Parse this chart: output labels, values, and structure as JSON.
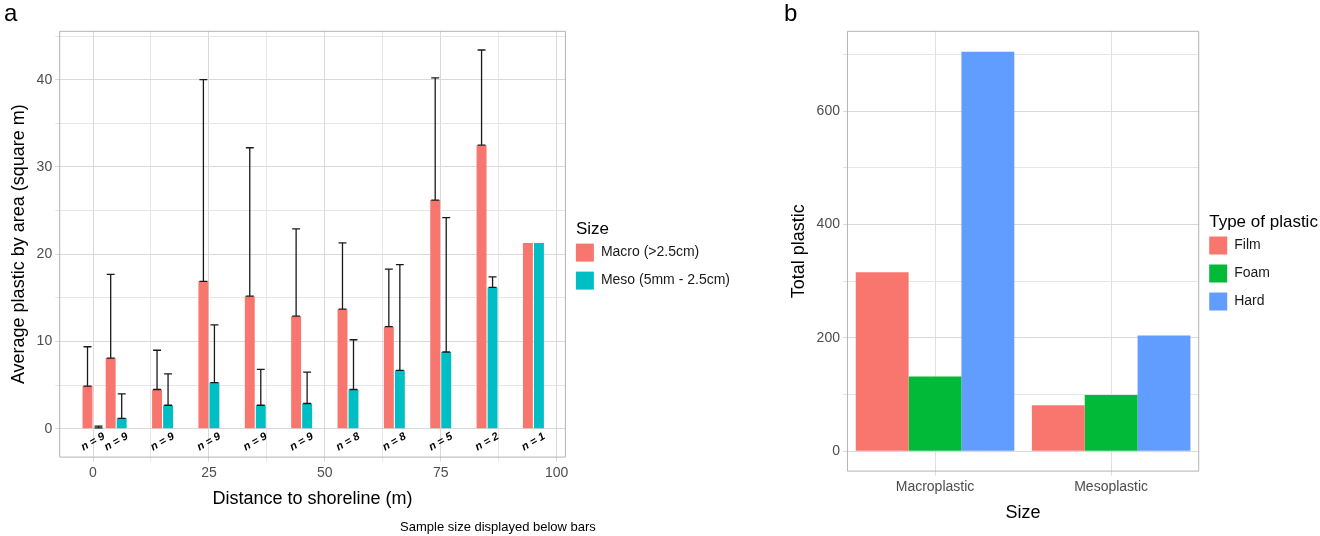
{
  "chart_data": [
    {
      "type": "bar",
      "title": "a",
      "xlabel": "Distance to shoreline (m)",
      "ylabel": "Average plastic by area (square m)",
      "legend_title": "Size",
      "legend": "right",
      "grid": true,
      "x": [
        0,
        5,
        15,
        25,
        35,
        45,
        55,
        65,
        75,
        85,
        95
      ],
      "xlim": [
        -7.3,
        102
      ],
      "xticks": [
        0,
        {
          "value": 12.5,
          "label": null
        },
        25,
        {
          "value": 37.5,
          "label": null
        },
        50,
        {
          "value": 62.5,
          "label": null
        },
        75,
        {
          "value": 87.5,
          "label": null
        },
        100
      ],
      "ylim": [
        -3.3,
        45.6
      ],
      "yticks": [
        0,
        {
          "value": 5,
          "label": null
        },
        10,
        {
          "value": 15,
          "label": null
        },
        20,
        {
          "value": 25,
          "label": null
        },
        30,
        {
          "value": 35,
          "label": null
        },
        40,
        {
          "value": 45,
          "label": null
        }
      ],
      "series": [
        {
          "name": "Macro (>2.5cm)",
          "color": "#f8766d",
          "values": [
            4.9,
            8.1,
            4.5,
            16.9,
            15.2,
            12.9,
            13.7,
            11.7,
            26.2,
            32.5,
            21.3
          ],
          "errors": [
            [
              4.9,
              9.4
            ],
            [
              8.1,
              17.7
            ],
            [
              4.5,
              9.0
            ],
            [
              16.9,
              40.0
            ],
            [
              15.2,
              32.2
            ],
            [
              12.9,
              22.9
            ],
            [
              13.7,
              21.3
            ],
            [
              11.7,
              18.3
            ],
            [
              26.2,
              40.2
            ],
            [
              32.5,
              43.4
            ],
            null
          ]
        },
        {
          "name": "Meso (5mm - 2.5cm)",
          "color": "#00bfc4",
          "values": [
            0.1,
            1.2,
            2.7,
            5.3,
            2.7,
            2.9,
            4.5,
            6.7,
            8.8,
            16.2,
            21.3
          ],
          "errors": [
            [
              0.1,
              0.3
            ],
            [
              1.2,
              4.0
            ],
            [
              2.7,
              6.3
            ],
            [
              5.3,
              11.9
            ],
            [
              2.7,
              6.8
            ],
            [
              2.9,
              6.5
            ],
            [
              4.5,
              10.2
            ],
            [
              6.7,
              18.8
            ],
            [
              8.8,
              24.2
            ],
            [
              16.2,
              17.4
            ],
            null
          ]
        }
      ],
      "annotations": [
        "n = 9",
        "n = 9",
        "n = 9",
        "n = 9",
        "n = 9",
        "n = 9",
        "n = 8",
        "n = 8",
        "n = 5",
        "n = 2",
        "n = 1",
        "Sample size displayed below bars"
      ]
    },
    {
      "type": "bar",
      "title": "b",
      "xlabel": "Size",
      "ylabel": "Total plastic",
      "legend_title": "Type of plastic",
      "legend": "right",
      "grid": true,
      "categories": [
        "Macroplastic",
        "Mesoplastic"
      ],
      "ylim": [
        -36,
        742
      ],
      "yticks": [
        0,
        {
          "value": 100,
          "label": null
        },
        200,
        {
          "value": 300,
          "label": null
        },
        400,
        {
          "value": 500,
          "label": null
        },
        600,
        {
          "value": 700,
          "label": null
        }
      ],
      "series": [
        {
          "name": "Film",
          "color": "#f8766d",
          "values": [
            316,
            81
          ]
        },
        {
          "name": "Foam",
          "color": "#00ba38",
          "values": [
            132,
            99
          ]
        },
        {
          "name": "Hard",
          "color": "#619cff",
          "values": [
            705,
            204
          ]
        }
      ]
    }
  ]
}
